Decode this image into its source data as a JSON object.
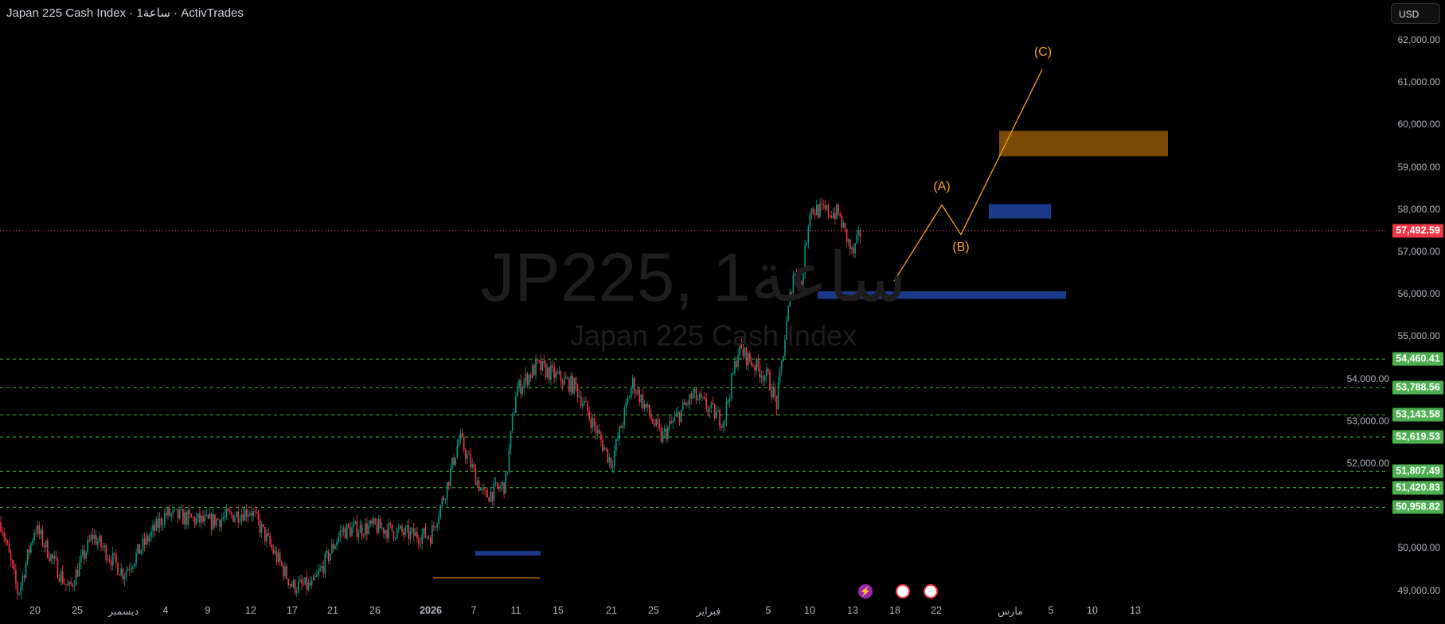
{
  "header": {
    "title": "Japan 225 Cash Index · 1ساعة · ActivTrades",
    "currency_button": "USD"
  },
  "watermark": {
    "symbol": "JP225, 1ساعة",
    "name": "Japan 225 Cash Index"
  },
  "colors": {
    "up": "#089981",
    "down": "#f23645",
    "levels": "#4caf50",
    "zone_orange": "#7a4a06",
    "zone_blue": "#1c3a8a",
    "wave": "#f7a21b",
    "last_price": "#f23645"
  },
  "price_axis": {
    "ticks": [
      "62,000.00",
      "61,000.00",
      "60,000.00",
      "59,000.00",
      "58,000.00",
      "57,000.00",
      "56,000.00",
      "55,000.00",
      "54,000.00",
      "53,000.00",
      "52,000.00",
      "50,000.00",
      "49,000.00"
    ],
    "tick_values": [
      62000,
      61000,
      60000,
      59000,
      58000,
      57000,
      56000,
      55000,
      54000,
      53000,
      52000,
      50000,
      49000
    ],
    "last_price": {
      "label": "57,492.59",
      "value": 57492.59
    },
    "levels": [
      {
        "label": "54,460.41",
        "value": 54460.41
      },
      {
        "label": "53,788.56",
        "value": 53788.56
      },
      {
        "label": "53,143.58",
        "value": 53143.58
      },
      {
        "label": "52,619.53",
        "value": 52619.53
      },
      {
        "label": "51,807.49",
        "value": 51807.49
      },
      {
        "label": "51,420.83",
        "value": 51420.83
      },
      {
        "label": "50,958.82",
        "value": 50958.82
      }
    ]
  },
  "time_axis": {
    "ticks": [
      "20",
      "25",
      "ديسمبر",
      "4",
      "9",
      "12",
      "17",
      "21",
      "26",
      "2026",
      "7",
      "11",
      "15",
      "21",
      "25",
      "فبراير",
      "5",
      "10",
      "13",
      "18",
      "22",
      "مارس",
      "5",
      "10",
      "13"
    ]
  },
  "chart_data": {
    "type": "candlestick",
    "ylim": [
      48700,
      62300
    ],
    "price_path": [
      [
        "11-16",
        50600
      ],
      [
        "11-18",
        48900
      ],
      [
        "11-20",
        50500
      ],
      [
        "11-24",
        49000
      ],
      [
        "11-27",
        50300
      ],
      [
        "12-01",
        49400
      ],
      [
        "12-04",
        50800
      ],
      [
        "12-09",
        50600
      ],
      [
        "12-12",
        50900
      ],
      [
        "12-17",
        49100
      ],
      [
        "12-19",
        49100
      ],
      [
        "12-22",
        50400
      ],
      [
        "12-26",
        50500
      ],
      [
        "12-30",
        50300
      ],
      [
        "01-01",
        50300
      ],
      [
        "01-03",
        51300
      ],
      [
        "01-05",
        52600
      ],
      [
        "01-08",
        51200
      ],
      [
        "01-10",
        51500
      ],
      [
        "01-11",
        53700
      ],
      [
        "01-13",
        54300
      ],
      [
        "01-17",
        53800
      ],
      [
        "01-21",
        52000
      ],
      [
        "01-23",
        53900
      ],
      [
        "01-26",
        52600
      ],
      [
        "01-30",
        53600
      ],
      [
        "02-02",
        53000
      ],
      [
        "02-03",
        54700
      ],
      [
        "02-05",
        54000
      ],
      [
        "02-06",
        53400
      ],
      [
        "02-08",
        56500
      ],
      [
        "02-09",
        56200
      ],
      [
        "02-10",
        58000
      ],
      [
        "02-12",
        57900
      ],
      [
        "02-13",
        56900
      ],
      [
        "02-14",
        57500
      ]
    ],
    "annotations": {
      "wave_labels": [
        "(A)",
        "(B)",
        "(C)"
      ],
      "wave_prices": [
        56300,
        58100,
        57400,
        61300
      ],
      "zones": [
        {
          "color": "orange",
          "from": 59250,
          "to": 59850
        },
        {
          "color": "blue",
          "from": 57780,
          "to": 58120
        },
        {
          "color": "blue",
          "from": 55880,
          "to": 56060
        },
        {
          "color": "blue",
          "from": 49820,
          "to": 49930
        }
      ]
    }
  },
  "events": [
    "lightning-event-icon",
    "us-flag-event-icon",
    "us-flag-event-icon"
  ]
}
